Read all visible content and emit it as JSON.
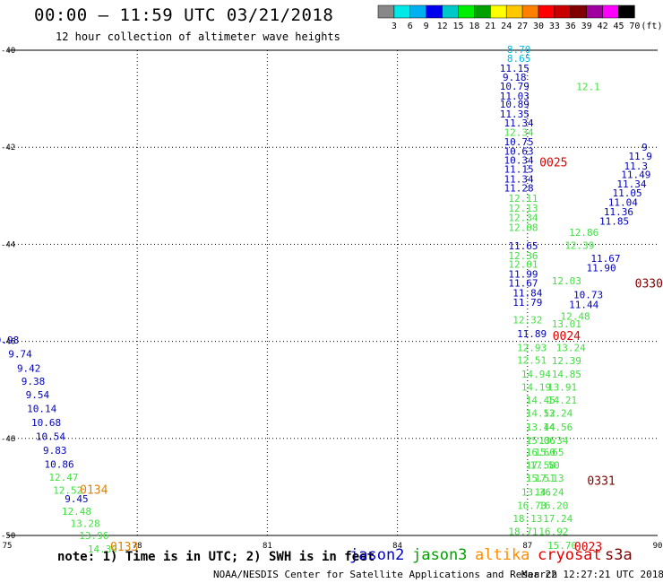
{
  "header": {
    "title": "00:00 – 11:59 UTC 03/21/2018",
    "subtitle": "12 hour collection of altimeter wave heights"
  },
  "colorbar": {
    "labels": [
      "3",
      "6",
      "9",
      "12",
      "15",
      "18",
      "21",
      "24",
      "27",
      "30",
      "33",
      "36",
      "39",
      "42",
      "45",
      "70"
    ],
    "unit": "(ft)",
    "colors": [
      "#888888",
      "#00e8e8",
      "#00b0f0",
      "#0000ee",
      "#00c8c8",
      "#00ee00",
      "#00a000",
      "#ffff00",
      "#ffc800",
      "#ff8000",
      "#ff0000",
      "#c80000",
      "#800000",
      "#a000a0",
      "#ff00ff",
      "#000000"
    ]
  },
  "chart_data": {
    "type": "scatter",
    "subtype": "map-annotation",
    "xlim": [
      75,
      90
    ],
    "ylim": [
      -50,
      -40
    ],
    "x_ticks": [
      "75",
      "78",
      "81",
      "84",
      "87",
      "90"
    ],
    "y_ticks": [
      "-40",
      "-42",
      "-44",
      "-46",
      "-48",
      "-50"
    ],
    "grid": true,
    "series": [
      {
        "name": "jason2",
        "color": "#0000c0",
        "points": [
          {
            "x": 75.0,
            "y": -45.97,
            "label": "9.98"
          },
          {
            "x": 75.3,
            "y": -46.26,
            "label": "9.74"
          },
          {
            "x": 75.5,
            "y": -46.55,
            "label": "9.42"
          },
          {
            "x": 75.6,
            "y": -46.82,
            "label": "9.38"
          },
          {
            "x": 75.7,
            "y": -47.1,
            "label": "9.54"
          },
          {
            "x": 75.8,
            "y": -47.38,
            "label": "10.14"
          },
          {
            "x": 75.9,
            "y": -47.67,
            "label": "10.68"
          },
          {
            "x": 76.0,
            "y": -47.96,
            "label": "10.54"
          },
          {
            "x": 76.1,
            "y": -48.24,
            "label": "9.83"
          },
          {
            "x": 76.2,
            "y": -48.53,
            "label": "10.86"
          },
          {
            "x": 76.6,
            "y": -49.24,
            "label": "9.45"
          },
          {
            "x": 86.7,
            "y": -40.37,
            "label": "11.15"
          },
          {
            "x": 86.7,
            "y": -40.55,
            "label": "9.18"
          },
          {
            "x": 86.7,
            "y": -40.74,
            "label": "10.79"
          },
          {
            "x": 86.7,
            "y": -40.94,
            "label": "11.03"
          },
          {
            "x": 86.7,
            "y": -41.11,
            "label": "10.89"
          },
          {
            "x": 86.7,
            "y": -41.31,
            "label": "11.35"
          },
          {
            "x": 86.8,
            "y": -41.5,
            "label": "11.34"
          },
          {
            "x": 86.8,
            "y": -41.89,
            "label": "10.75"
          },
          {
            "x": 86.8,
            "y": -42.08,
            "label": "10.63"
          },
          {
            "x": 86.8,
            "y": -42.26,
            "label": "10.34"
          },
          {
            "x": 86.8,
            "y": -42.45,
            "label": "11.15"
          },
          {
            "x": 86.8,
            "y": -42.65,
            "label": "11.34"
          },
          {
            "x": 86.8,
            "y": -42.84,
            "label": "11.28"
          },
          {
            "x": 86.9,
            "y": -44.03,
            "label": "11.65"
          },
          {
            "x": 86.9,
            "y": -44.61,
            "label": "11.99"
          },
          {
            "x": 86.9,
            "y": -44.8,
            "label": "11.67"
          },
          {
            "x": 87.0,
            "y": -45.0,
            "label": "11.84"
          },
          {
            "x": 87.0,
            "y": -45.19,
            "label": "11.79"
          },
          {
            "x": 87.1,
            "y": -45.84,
            "label": "11.89"
          },
          {
            "x": 89.7,
            "y": -42.0,
            "label": "9"
          },
          {
            "x": 89.6,
            "y": -42.18,
            "label": "11.9"
          },
          {
            "x": 89.5,
            "y": -42.38,
            "label": "11.3"
          },
          {
            "x": 89.5,
            "y": -42.56,
            "label": "11.49"
          },
          {
            "x": 89.4,
            "y": -42.75,
            "label": "11.34"
          },
          {
            "x": 89.3,
            "y": -42.94,
            "label": "11.05"
          },
          {
            "x": 89.2,
            "y": -43.13,
            "label": "11.04"
          },
          {
            "x": 89.1,
            "y": -43.33,
            "label": "11.36"
          },
          {
            "x": 89.0,
            "y": -43.52,
            "label": "11.85"
          },
          {
            "x": 88.8,
            "y": -44.29,
            "label": "11.67"
          },
          {
            "x": 88.7,
            "y": -44.48,
            "label": "11.90"
          },
          {
            "x": 88.4,
            "y": -45.04,
            "label": "10.73"
          },
          {
            "x": 88.3,
            "y": -45.24,
            "label": "11.44"
          }
        ]
      },
      {
        "name": "jason3",
        "color": "#40e040",
        "points": [
          {
            "x": 76.3,
            "y": -48.8,
            "label": "12.47"
          },
          {
            "x": 76.4,
            "y": -49.07,
            "label": "12.52"
          },
          {
            "x": 76.6,
            "y": -49.5,
            "label": "12.48"
          },
          {
            "x": 76.8,
            "y": -49.75,
            "label": "13.28"
          },
          {
            "x": 77.0,
            "y": -50.0,
            "label": "13.96"
          },
          {
            "x": 77.2,
            "y": -50.28,
            "label": "14.39"
          },
          {
            "x": 86.8,
            "y": -41.69,
            "label": "12.34"
          },
          {
            "x": 86.9,
            "y": -43.05,
            "label": "12.11"
          },
          {
            "x": 86.9,
            "y": -43.25,
            "label": "12.13"
          },
          {
            "x": 86.9,
            "y": -43.45,
            "label": "12.34"
          },
          {
            "x": 86.9,
            "y": -43.65,
            "label": "12.08"
          },
          {
            "x": 86.9,
            "y": -44.23,
            "label": "12.36"
          },
          {
            "x": 86.9,
            "y": -44.41,
            "label": "12.01"
          },
          {
            "x": 87.0,
            "y": -45.55,
            "label": "12.32"
          },
          {
            "x": 87.1,
            "y": -46.13,
            "label": "12.93"
          },
          {
            "x": 87.1,
            "y": -46.39,
            "label": "12.51"
          },
          {
            "x": 87.2,
            "y": -46.67,
            "label": "14.94"
          },
          {
            "x": 87.2,
            "y": -46.94,
            "label": "14.19"
          },
          {
            "x": 87.3,
            "y": -47.21,
            "label": "14.45"
          },
          {
            "x": 87.3,
            "y": -47.48,
            "label": "14.52"
          },
          {
            "x": 87.3,
            "y": -47.76,
            "label": "13.44"
          },
          {
            "x": 87.3,
            "y": -48.04,
            "label": "15.06"
          },
          {
            "x": 87.3,
            "y": -48.28,
            "label": "16.60"
          },
          {
            "x": 87.3,
            "y": -48.55,
            "label": "17.58"
          },
          {
            "x": 87.3,
            "y": -48.82,
            "label": "15.51"
          },
          {
            "x": 87.2,
            "y": -49.1,
            "label": "13.36"
          },
          {
            "x": 87.1,
            "y": -49.38,
            "label": "16.73"
          },
          {
            "x": 87.0,
            "y": -49.65,
            "label": "18.13"
          },
          {
            "x": 86.9,
            "y": -49.92,
            "label": "18.71"
          },
          {
            "x": 88.4,
            "y": -40.75,
            "label": "12.1"
          },
          {
            "x": 88.3,
            "y": -43.75,
            "label": "12.86"
          },
          {
            "x": 88.2,
            "y": -44.02,
            "label": "12.39"
          },
          {
            "x": 87.9,
            "y": -44.75,
            "label": "12.03"
          },
          {
            "x": 88.1,
            "y": -45.48,
            "label": "12.48"
          },
          {
            "x": 87.9,
            "y": -45.64,
            "label": "13.01"
          },
          {
            "x": 88.0,
            "y": -46.13,
            "label": "13.24"
          },
          {
            "x": 87.9,
            "y": -46.4,
            "label": "12.39"
          },
          {
            "x": 87.9,
            "y": -46.67,
            "label": "14.85"
          },
          {
            "x": 87.8,
            "y": -46.94,
            "label": "13.91"
          },
          {
            "x": 87.8,
            "y": -47.21,
            "label": "14.21"
          },
          {
            "x": 87.7,
            "y": -47.48,
            "label": "13.24"
          },
          {
            "x": 87.7,
            "y": -47.76,
            "label": "14.56"
          },
          {
            "x": 87.6,
            "y": -48.04,
            "label": "13.34"
          },
          {
            "x": 87.5,
            "y": -48.28,
            "label": "15.65"
          },
          {
            "x": 87.4,
            "y": -48.55,
            "label": "17.50"
          },
          {
            "x": 87.5,
            "y": -48.82,
            "label": "17.13"
          },
          {
            "x": 87.5,
            "y": -49.1,
            "label": "14.24"
          },
          {
            "x": 87.6,
            "y": -49.38,
            "label": "16.20"
          },
          {
            "x": 87.7,
            "y": -49.65,
            "label": "17.24"
          },
          {
            "x": 87.6,
            "y": -49.92,
            "label": "16.92"
          },
          {
            "x": 87.8,
            "y": -50.2,
            "label": "15.70"
          }
        ]
      },
      {
        "name": "altika",
        "color": "#00b8e8",
        "points": [
          {
            "x": 86.8,
            "y": -39.98,
            "label": "8.70"
          },
          {
            "x": 86.8,
            "y": -40.17,
            "label": "8.65"
          }
        ]
      },
      {
        "name": "cryosat",
        "color": "#e00000",
        "points": []
      },
      {
        "name": "s3a",
        "color": "#800000",
        "points": []
      }
    ],
    "time_labels": [
      {
        "text": "0025",
        "color": "#e00000",
        "x": 87.6,
        "y": -42.3
      },
      {
        "text": "0024",
        "color": "#e00000",
        "x": 87.9,
        "y": -45.88
      },
      {
        "text": "0023",
        "color": "#e00000",
        "x": 88.4,
        "y": -50.22
      },
      {
        "text": "0331",
        "color": "#800000",
        "x": 88.7,
        "y": -48.86
      },
      {
        "text": "0330",
        "color": "#800000",
        "x": 89.8,
        "y": -44.8
      },
      {
        "text": "0134",
        "color": "#e08000",
        "x": 77.0,
        "y": -49.05
      },
      {
        "text": "0133",
        "color": "#e08000",
        "x": 77.7,
        "y": -50.22
      }
    ]
  },
  "legend": {
    "items": [
      {
        "label": "jason2",
        "color": "#0000c0"
      },
      {
        "label": "jason3",
        "color": "#00a000"
      },
      {
        "label": "altika",
        "color": "#ff8c00"
      },
      {
        "label": "cryosat",
        "color": "#e00000"
      },
      {
        "label": "s3a",
        "color": "#800000"
      }
    ]
  },
  "footer": {
    "note": "note: 1) Time is in UTC; 2) SWH is in feet",
    "credit": "NOAA/NESDIS Center for Satellite Applications and Research",
    "generated": "Mar 22 12:27:21 UTC 2018"
  }
}
